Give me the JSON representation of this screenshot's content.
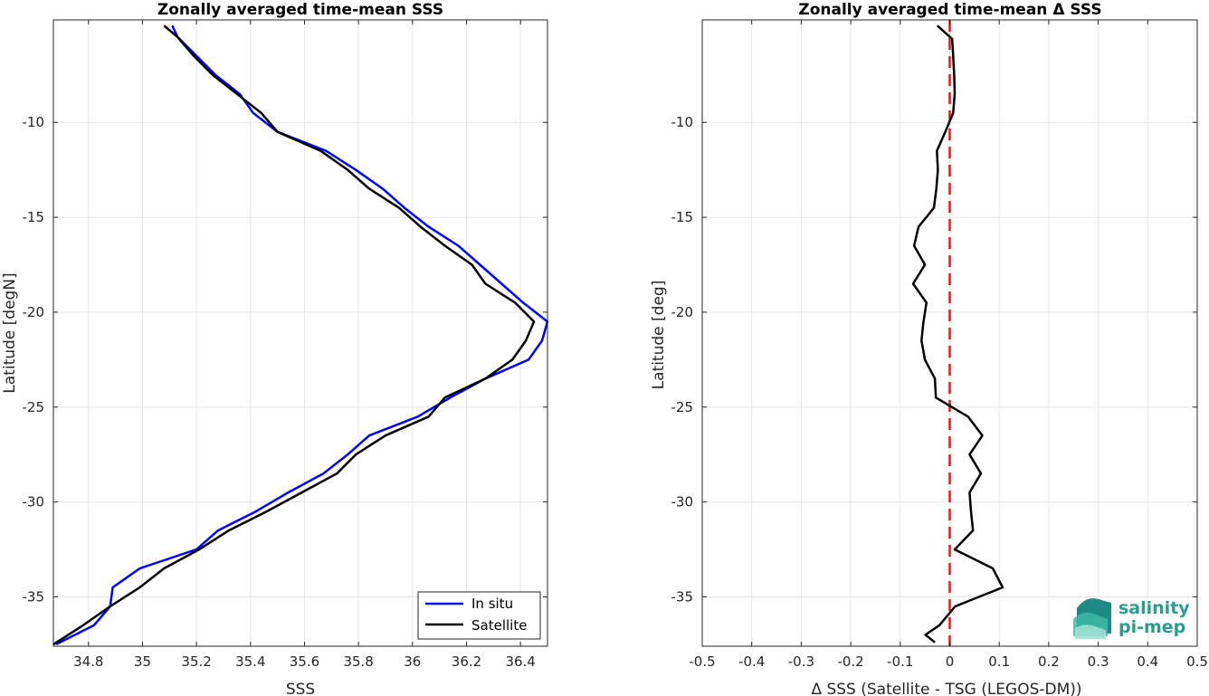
{
  "chart_data": [
    {
      "type": "line",
      "title": "Zonally averaged time-mean SSS",
      "xlabel": "SSS",
      "ylabel": "Latitude [degN]",
      "xlim": [
        34.67,
        36.5
      ],
      "ylim": [
        -37.6,
        -4.6
      ],
      "xticks": [
        34.8,
        35,
        35.2,
        35.4,
        35.6,
        35.8,
        36,
        36.2,
        36.4
      ],
      "xtick_labels": [
        "34.8",
        "35",
        "35.2",
        "35.4",
        "35.6",
        "35.8",
        "36",
        "36.2",
        "36.4"
      ],
      "yticks": [
        -10,
        -15,
        -20,
        -25,
        -30,
        -35
      ],
      "ytick_labels": [
        "-10",
        "-15",
        "-20",
        "-25",
        "-30",
        "-35"
      ],
      "grid": true,
      "legend_position": "bottom-right",
      "series": [
        {
          "name": "In situ",
          "color": "#0000ff",
          "points": [
            [
              35.11,
              -4.9
            ],
            [
              35.13,
              -5.5
            ],
            [
              35.2,
              -6.5
            ],
            [
              35.27,
              -7.5
            ],
            [
              35.36,
              -8.5
            ],
            [
              35.41,
              -9.5
            ],
            [
              35.5,
              -10.5
            ],
            [
              35.68,
              -11.5
            ],
            [
              35.79,
              -12.5
            ],
            [
              35.89,
              -13.5
            ],
            [
              35.97,
              -14.5
            ],
            [
              36.06,
              -15.5
            ],
            [
              36.17,
              -16.5
            ],
            [
              36.25,
              -17.5
            ],
            [
              36.33,
              -18.5
            ],
            [
              36.41,
              -19.5
            ],
            [
              36.5,
              -20.5
            ],
            [
              36.48,
              -21.5
            ],
            [
              36.43,
              -22.5
            ],
            [
              36.27,
              -23.5
            ],
            [
              36.14,
              -24.5
            ],
            [
              36.02,
              -25.5
            ],
            [
              35.84,
              -26.5
            ],
            [
              35.76,
              -27.5
            ],
            [
              35.67,
              -28.5
            ],
            [
              35.54,
              -29.5
            ],
            [
              35.42,
              -30.5
            ],
            [
              35.28,
              -31.5
            ],
            [
              35.2,
              -32.5
            ],
            [
              34.99,
              -33.5
            ],
            [
              34.89,
              -34.5
            ],
            [
              34.88,
              -35.5
            ],
            [
              34.82,
              -36.5
            ],
            [
              34.68,
              -37.5
            ]
          ]
        },
        {
          "name": "Satellite",
          "color": "#000000",
          "points": [
            [
              35.08,
              -4.9
            ],
            [
              35.13,
              -5.5
            ],
            [
              35.19,
              -6.5
            ],
            [
              35.26,
              -7.5
            ],
            [
              35.35,
              -8.5
            ],
            [
              35.44,
              -9.5
            ],
            [
              35.5,
              -10.5
            ],
            [
              35.66,
              -11.5
            ],
            [
              35.76,
              -12.5
            ],
            [
              35.84,
              -13.5
            ],
            [
              35.95,
              -14.5
            ],
            [
              36.03,
              -15.5
            ],
            [
              36.12,
              -16.5
            ],
            [
              36.22,
              -17.5
            ],
            [
              36.27,
              -18.5
            ],
            [
              36.38,
              -19.5
            ],
            [
              36.45,
              -20.5
            ],
            [
              36.42,
              -21.5
            ],
            [
              36.37,
              -22.5
            ],
            [
              36.27,
              -23.5
            ],
            [
              36.12,
              -24.5
            ],
            [
              36.06,
              -25.5
            ],
            [
              35.9,
              -26.5
            ],
            [
              35.79,
              -27.5
            ],
            [
              35.72,
              -28.5
            ],
            [
              35.59,
              -29.5
            ],
            [
              35.46,
              -30.5
            ],
            [
              35.32,
              -31.5
            ],
            [
              35.21,
              -32.5
            ],
            [
              35.08,
              -33.5
            ],
            [
              34.99,
              -34.5
            ],
            [
              34.88,
              -35.5
            ],
            [
              34.78,
              -36.5
            ],
            [
              34.67,
              -37.5
            ]
          ]
        }
      ]
    },
    {
      "type": "line",
      "title": "Zonally averaged time-mean Δ SSS",
      "xlabel": "Δ SSS (Satellite - TSG (LEGOS-DM))",
      "ylabel": "Latitude [deg]",
      "xlim": [
        -0.5,
        0.5
      ],
      "ylim": [
        -37.6,
        -4.6
      ],
      "xticks": [
        -0.5,
        -0.4,
        -0.3,
        -0.2,
        -0.1,
        0,
        0.1,
        0.2,
        0.3,
        0.4,
        0.5
      ],
      "xtick_labels": [
        "-0.5",
        "-0.4",
        "-0.3",
        "-0.2",
        "-0.1",
        "0",
        "0.1",
        "0.2",
        "0.3",
        "0.4",
        "0.5"
      ],
      "yticks": [
        -10,
        -15,
        -20,
        -25,
        -30,
        -35
      ],
      "ytick_labels": [
        "-10",
        "-15",
        "-20",
        "-25",
        "-30",
        "-35"
      ],
      "grid": true,
      "reference_line": {
        "x": 0,
        "color": "#e41a1c",
        "style": "dashed"
      },
      "series": [
        {
          "color": "#000000",
          "points": [
            [
              -0.025,
              -4.9
            ],
            [
              0.005,
              -5.6
            ],
            [
              0.007,
              -6.5
            ],
            [
              0.009,
              -7.5
            ],
            [
              0.01,
              -8.5
            ],
            [
              0.007,
              -9.5
            ],
            [
              -0.009,
              -10.5
            ],
            [
              -0.026,
              -11.5
            ],
            [
              -0.024,
              -12.5
            ],
            [
              -0.027,
              -13.5
            ],
            [
              -0.032,
              -14.5
            ],
            [
              -0.063,
              -15.5
            ],
            [
              -0.072,
              -16.5
            ],
            [
              -0.05,
              -17.5
            ],
            [
              -0.074,
              -18.5
            ],
            [
              -0.047,
              -19.5
            ],
            [
              -0.053,
              -20.5
            ],
            [
              -0.057,
              -21.5
            ],
            [
              -0.05,
              -22.5
            ],
            [
              -0.03,
              -23.5
            ],
            [
              -0.028,
              -24.5
            ],
            [
              0.037,
              -25.5
            ],
            [
              0.066,
              -26.5
            ],
            [
              0.04,
              -27.5
            ],
            [
              0.063,
              -28.5
            ],
            [
              0.04,
              -29.5
            ],
            [
              0.043,
              -30.5
            ],
            [
              0.047,
              -31.5
            ],
            [
              0.01,
              -32.5
            ],
            [
              0.087,
              -33.5
            ],
            [
              0.107,
              -34.5
            ],
            [
              0.011,
              -35.5
            ],
            [
              -0.021,
              -36.5
            ],
            [
              -0.049,
              -37.0
            ],
            [
              -0.03,
              -37.4
            ]
          ]
        }
      ]
    }
  ],
  "logo": {
    "line1": "salinity",
    "line2": "pi-mep"
  }
}
